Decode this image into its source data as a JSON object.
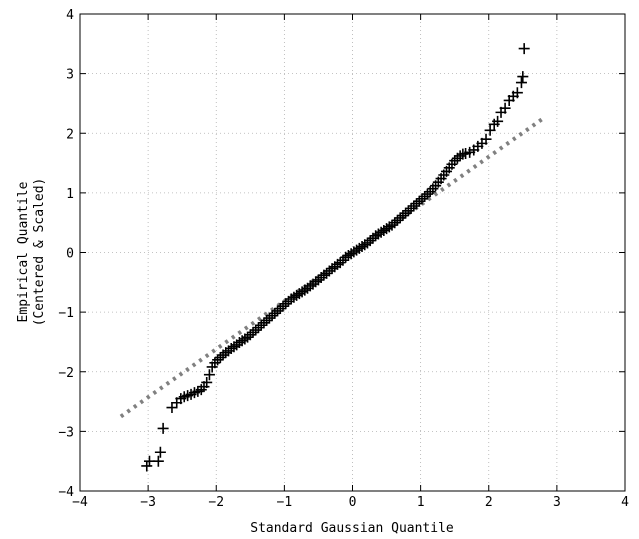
{
  "chart_data": {
    "type": "scatter",
    "title": "",
    "xlabel": "Standard Gaussian Quantile",
    "ylabel_line1": "Empirical Quantile",
    "ylabel_line2": "(Centered & Scaled)",
    "xlim": [
      -4,
      4
    ],
    "ylim": [
      -4,
      4
    ],
    "xticks": [
      "−4",
      "−3",
      "−2",
      "−1",
      "0",
      "1",
      "2",
      "3",
      "4"
    ],
    "yticks": [
      "−4",
      "−3",
      "−2",
      "−1",
      "0",
      "1",
      "2",
      "3",
      "4"
    ],
    "grid": true,
    "marker": "+",
    "reference_line": {
      "x": [
        -3.4,
        2.8
      ],
      "y": [
        -2.75,
        2.25
      ],
      "style": "dotted",
      "color": "#808080"
    },
    "points": [
      [
        -3.02,
        -3.58
      ],
      [
        -2.98,
        -3.5
      ],
      [
        -2.85,
        -3.5
      ],
      [
        -2.82,
        -3.35
      ],
      [
        -2.78,
        -2.95
      ],
      [
        -2.65,
        -2.6
      ],
      [
        -2.58,
        -2.52
      ],
      [
        -2.52,
        -2.45
      ],
      [
        -2.47,
        -2.42
      ],
      [
        -2.42,
        -2.4
      ],
      [
        -2.37,
        -2.38
      ],
      [
        -2.32,
        -2.35
      ],
      [
        -2.27,
        -2.33
      ],
      [
        -2.22,
        -2.3
      ],
      [
        -2.18,
        -2.25
      ],
      [
        -2.14,
        -2.18
      ],
      [
        -2.1,
        -2.05
      ],
      [
        -2.06,
        -1.92
      ],
      [
        -2.02,
        -1.85
      ],
      [
        -1.98,
        -1.8
      ],
      [
        -1.94,
        -1.76
      ],
      [
        -1.9,
        -1.72
      ],
      [
        -1.86,
        -1.68
      ],
      [
        -1.82,
        -1.65
      ],
      [
        -1.78,
        -1.61
      ],
      [
        -1.74,
        -1.58
      ],
      [
        -1.7,
        -1.55
      ],
      [
        -1.66,
        -1.51
      ],
      [
        -1.62,
        -1.48
      ],
      [
        -1.58,
        -1.45
      ],
      [
        -1.54,
        -1.42
      ],
      [
        -1.5,
        -1.38
      ],
      [
        -1.46,
        -1.34
      ],
      [
        -1.42,
        -1.3
      ],
      [
        -1.38,
        -1.26
      ],
      [
        -1.34,
        -1.22
      ],
      [
        -1.3,
        -1.18
      ],
      [
        -1.26,
        -1.14
      ],
      [
        -1.22,
        -1.1
      ],
      [
        -1.18,
        -1.06
      ],
      [
        -1.14,
        -1.02
      ],
      [
        -1.1,
        -0.98
      ],
      [
        -1.06,
        -0.94
      ],
      [
        -1.02,
        -0.9
      ],
      [
        -0.98,
        -0.86
      ],
      [
        -0.94,
        -0.82
      ],
      [
        -0.9,
        -0.78
      ],
      [
        -0.86,
        -0.75
      ],
      [
        -0.82,
        -0.72
      ],
      [
        -0.78,
        -0.69
      ],
      [
        -0.74,
        -0.66
      ],
      [
        -0.7,
        -0.63
      ],
      [
        -0.66,
        -0.6
      ],
      [
        -0.62,
        -0.56
      ],
      [
        -0.58,
        -0.53
      ],
      [
        -0.54,
        -0.49
      ],
      [
        -0.5,
        -0.46
      ],
      [
        -0.46,
        -0.42
      ],
      [
        -0.42,
        -0.38
      ],
      [
        -0.38,
        -0.35
      ],
      [
        -0.34,
        -0.31
      ],
      [
        -0.3,
        -0.27
      ],
      [
        -0.26,
        -0.24
      ],
      [
        -0.22,
        -0.2
      ],
      [
        -0.18,
        -0.17
      ],
      [
        -0.14,
        -0.13
      ],
      [
        -0.1,
        -0.08
      ],
      [
        -0.06,
        -0.05
      ],
      [
        -0.02,
        -0.02
      ],
      [
        0.02,
        0.01
      ],
      [
        0.06,
        0.04
      ],
      [
        0.1,
        0.07
      ],
      [
        0.14,
        0.1
      ],
      [
        0.18,
        0.13
      ],
      [
        0.22,
        0.16
      ],
      [
        0.26,
        0.2
      ],
      [
        0.3,
        0.24
      ],
      [
        0.34,
        0.28
      ],
      [
        0.38,
        0.31
      ],
      [
        0.42,
        0.34
      ],
      [
        0.46,
        0.37
      ],
      [
        0.5,
        0.4
      ],
      [
        0.54,
        0.43
      ],
      [
        0.58,
        0.46
      ],
      [
        0.62,
        0.5
      ],
      [
        0.66,
        0.54
      ],
      [
        0.7,
        0.58
      ],
      [
        0.74,
        0.62
      ],
      [
        0.78,
        0.66
      ],
      [
        0.82,
        0.7
      ],
      [
        0.86,
        0.74
      ],
      [
        0.9,
        0.78
      ],
      [
        0.94,
        0.82
      ],
      [
        0.98,
        0.86
      ],
      [
        1.02,
        0.9
      ],
      [
        1.06,
        0.94
      ],
      [
        1.1,
        0.98
      ],
      [
        1.14,
        1.02
      ],
      [
        1.18,
        1.07
      ],
      [
        1.22,
        1.12
      ],
      [
        1.26,
        1.18
      ],
      [
        1.3,
        1.24
      ],
      [
        1.34,
        1.3
      ],
      [
        1.38,
        1.36
      ],
      [
        1.42,
        1.42
      ],
      [
        1.46,
        1.48
      ],
      [
        1.5,
        1.54
      ],
      [
        1.54,
        1.58
      ],
      [
        1.58,
        1.62
      ],
      [
        1.62,
        1.65
      ],
      [
        1.66,
        1.66
      ],
      [
        1.72,
        1.68
      ],
      [
        1.78,
        1.72
      ],
      [
        1.84,
        1.78
      ],
      [
        1.9,
        1.83
      ],
      [
        1.96,
        1.9
      ],
      [
        2.02,
        2.05
      ],
      [
        2.08,
        2.15
      ],
      [
        2.13,
        2.2
      ],
      [
        2.18,
        2.35
      ],
      [
        2.24,
        2.42
      ],
      [
        2.3,
        2.55
      ],
      [
        2.36,
        2.62
      ],
      [
        2.42,
        2.68
      ],
      [
        2.48,
        2.85
      ],
      [
        2.5,
        2.95
      ],
      [
        2.52,
        3.42
      ]
    ]
  }
}
